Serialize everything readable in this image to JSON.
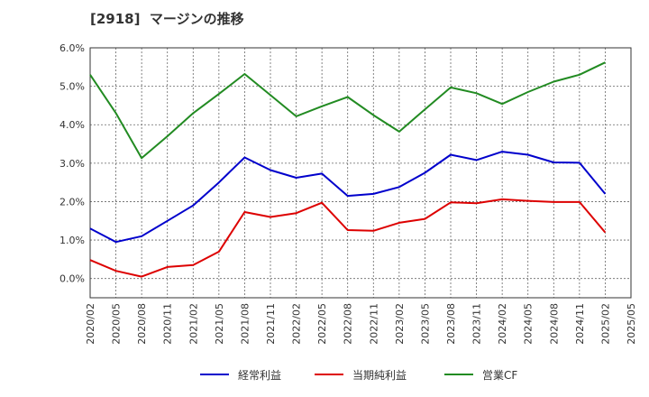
{
  "chart_data": {
    "type": "line",
    "title": "[2918]  マージンの推移",
    "xlabel": "",
    "ylabel": "",
    "ylim": [
      -0.5,
      6.0
    ],
    "y_ticks": [
      "0.0%",
      "1.0%",
      "2.0%",
      "3.0%",
      "4.0%",
      "5.0%",
      "6.0%"
    ],
    "y_tick_values": [
      0,
      1,
      2,
      3,
      4,
      5,
      6
    ],
    "categories": [
      "2020/02",
      "2020/05",
      "2020/08",
      "2020/11",
      "2021/02",
      "2021/05",
      "2021/08",
      "2021/11",
      "2022/02",
      "2022/05",
      "2022/08",
      "2022/11",
      "2023/02",
      "2023/05",
      "2023/08",
      "2023/11",
      "2024/02",
      "2024/05",
      "2024/08",
      "2024/11",
      "2025/02",
      "2025/05"
    ],
    "grid": true,
    "legend_position": "bottom",
    "series": [
      {
        "name": "経常利益",
        "color": "#0000cc",
        "values": [
          1.3,
          0.95,
          1.1,
          1.5,
          1.9,
          2.5,
          3.15,
          2.82,
          2.62,
          2.73,
          2.15,
          2.2,
          2.38,
          2.75,
          3.22,
          3.08,
          3.3,
          3.22,
          3.02,
          3.01,
          2.2,
          null
        ]
      },
      {
        "name": "当期純利益",
        "color": "#dd0000",
        "values": [
          0.48,
          0.2,
          0.05,
          0.3,
          0.35,
          0.7,
          1.73,
          1.6,
          1.7,
          1.97,
          1.26,
          1.24,
          1.45,
          1.55,
          1.98,
          1.96,
          2.06,
          2.02,
          1.99,
          1.99,
          1.2,
          null
        ]
      },
      {
        "name": "営業CF",
        "color": "#228b22",
        "values": [
          5.3,
          4.3,
          3.13,
          3.7,
          4.3,
          4.8,
          5.32,
          4.77,
          4.22,
          4.48,
          4.72,
          4.25,
          3.82,
          4.4,
          4.97,
          4.82,
          4.54,
          4.85,
          5.12,
          5.3,
          5.62,
          null
        ]
      }
    ]
  }
}
